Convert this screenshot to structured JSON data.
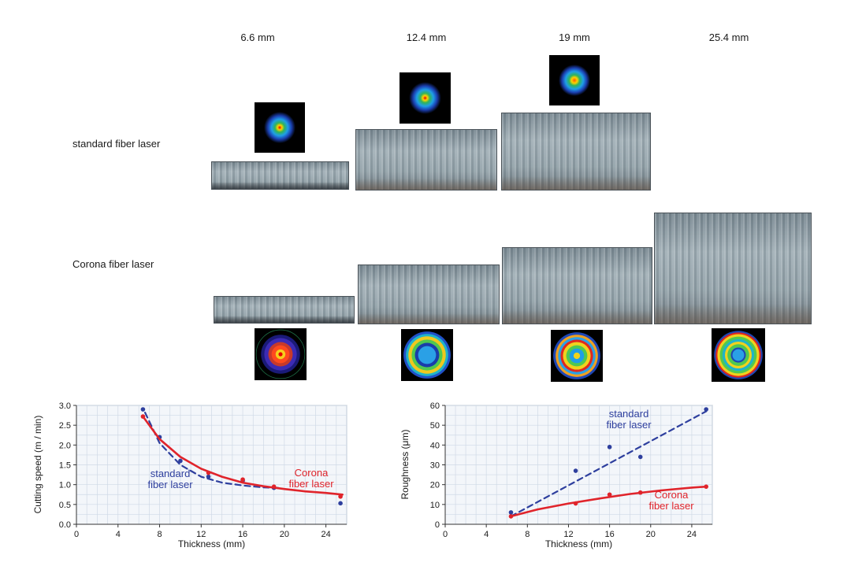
{
  "columns": [
    "6.6 mm",
    "12.4 mm",
    "19 mm",
    "25.4 mm"
  ],
  "rows": {
    "standard": "standard fiber laser",
    "corona": "Corona fiber laser"
  },
  "colors": {
    "standard": "#2e3f9e",
    "corona": "#e0242b",
    "grid": "#cfd9e6",
    "plot_bg": "#f3f6fa"
  },
  "chart_data": [
    {
      "type": "scatter",
      "xlabel": "Thickness (mm)",
      "ylabel": "Cutting speed (m / min)",
      "xlim": [
        0,
        26
      ],
      "ylim": [
        0,
        3.0
      ],
      "xticks": [
        0,
        4,
        8,
        12,
        16,
        20,
        24
      ],
      "yticks": [
        "0.0",
        "0.5",
        "1.0",
        "1.5",
        "2.0",
        "2.5",
        "3.0"
      ],
      "grid": true,
      "series": [
        {
          "name": "standard fiber laser",
          "label_lines": [
            "standard",
            "fiber laser"
          ],
          "color": "#2e3f9e",
          "line_style": "dashed",
          "points": [
            [
              6.4,
              2.9
            ],
            [
              8,
              2.2
            ],
            [
              10,
              1.6
            ],
            [
              12.7,
              1.2
            ],
            [
              16,
              1.1
            ],
            [
              19,
              0.92
            ],
            [
              25.4,
              0.53
            ]
          ],
          "fit": [
            [
              6.6,
              2.82
            ],
            [
              8,
              2.05
            ],
            [
              10,
              1.5
            ],
            [
              12,
              1.2
            ],
            [
              14,
              1.05
            ],
            [
              16,
              0.98
            ],
            [
              18,
              0.93
            ],
            [
              19.4,
              0.92
            ]
          ]
        },
        {
          "name": "Corona fiber laser",
          "label_lines": [
            "Corona",
            "fiber laser"
          ],
          "color": "#e0242b",
          "line_style": "solid",
          "points": [
            [
              6.4,
              2.72
            ],
            [
              12.7,
              1.3
            ],
            [
              16,
              1.13
            ],
            [
              19,
              0.95
            ],
            [
              25.4,
              0.7
            ]
          ],
          "fit": [
            [
              6.4,
              2.72
            ],
            [
              8,
              2.15
            ],
            [
              10,
              1.7
            ],
            [
              12,
              1.4
            ],
            [
              14,
              1.2
            ],
            [
              16,
              1.05
            ],
            [
              18,
              0.96
            ],
            [
              20,
              0.89
            ],
            [
              22,
              0.83
            ],
            [
              24,
              0.79
            ],
            [
              25.6,
              0.75
            ]
          ]
        }
      ]
    },
    {
      "type": "scatter",
      "xlabel": "Thickness (mm)",
      "ylabel": "Roughness (μm)",
      "xlim": [
        0,
        26
      ],
      "ylim": [
        0,
        60
      ],
      "xticks": [
        0,
        4,
        8,
        12,
        16,
        20,
        24
      ],
      "yticks": [
        "0",
        "10",
        "20",
        "30",
        "40",
        "50",
        "60"
      ],
      "grid": true,
      "series": [
        {
          "name": "standard fiber laser",
          "label_lines": [
            "standard",
            "fiber laser"
          ],
          "color": "#2e3f9e",
          "line_style": "dashed",
          "points": [
            [
              6.4,
              6
            ],
            [
              12.7,
              27
            ],
            [
              16,
              39
            ],
            [
              19,
              34
            ],
            [
              25.4,
              58
            ]
          ],
          "fit": [
            [
              6.4,
              4
            ],
            [
              25.4,
              57
            ]
          ]
        },
        {
          "name": "Corona fiber laser",
          "label_lines": [
            "Corona",
            "fiber laser"
          ],
          "color": "#e0242b",
          "line_style": "solid",
          "points": [
            [
              6.4,
              4
            ],
            [
              12.7,
              10.5
            ],
            [
              16,
              15
            ],
            [
              19,
              16
            ],
            [
              25.4,
              19
            ]
          ],
          "fit": [
            [
              6.4,
              4
            ],
            [
              9,
              7.5
            ],
            [
              12,
              10.5
            ],
            [
              15,
              13
            ],
            [
              18,
              15.3
            ],
            [
              21,
              17.1
            ],
            [
              24,
              18.5
            ],
            [
              25.4,
              19
            ]
          ]
        }
      ]
    }
  ]
}
